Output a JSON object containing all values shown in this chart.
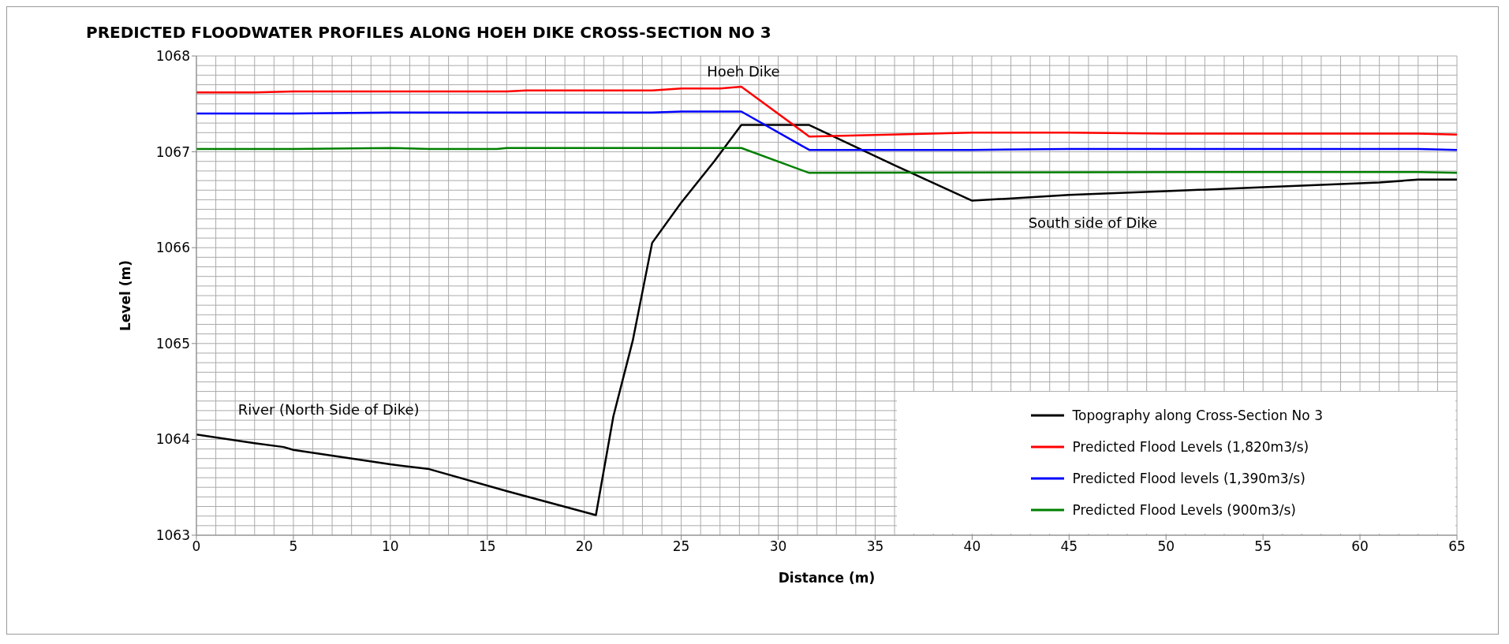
{
  "chart_data": {
    "type": "line",
    "title": "PREDICTED FLOODWATER PROFILES ALONG HOEH DIKE CROSS-SECTION NO 3",
    "xlabel": "Distance (m)",
    "ylabel": "Level (m)",
    "xlim": [
      0,
      65
    ],
    "xticks": [
      0,
      5,
      10,
      15,
      20,
      25,
      30,
      35,
      40,
      45,
      50,
      55,
      60,
      65
    ],
    "ylim": [
      1063,
      1068
    ],
    "yticks": [
      1063,
      1064,
      1065,
      1066,
      1067,
      1068
    ],
    "grid": true,
    "legend": "bottom right",
    "marker": "none",
    "line_style": "solid",
    "annotations": [
      "Hoeh Dike",
      "South side of Dike",
      "River (North Side of Dike)"
    ],
    "series": [
      {
        "name": "Topography along Cross-Section No 3",
        "color": "#000000",
        "x": [
          0,
          3,
          4.5,
          5,
          10,
          12,
          16,
          20.6,
          21.5,
          22.5,
          23.5,
          25,
          26.7,
          28.1,
          31.6,
          36,
          40,
          45,
          50,
          55,
          61,
          63,
          65
        ],
        "values": [
          1064.05,
          1063.96,
          1063.92,
          1063.89,
          1063.74,
          1063.69,
          1063.46,
          1063.21,
          1064.24,
          1065.03,
          1066.05,
          1066.47,
          1066.9,
          1067.28,
          1067.28,
          1066.86,
          1066.49,
          1066.55,
          1066.59,
          1066.63,
          1066.68,
          1066.71,
          1066.71
        ]
      },
      {
        "name": "Predicted Flood Levels (1,820m3/s)",
        "color": "#ff0000",
        "x": [
          0,
          3,
          5,
          16,
          17,
          23.5,
          25,
          27,
          28.1,
          31.6,
          40,
          45,
          50,
          63,
          65
        ],
        "values": [
          1067.62,
          1067.62,
          1067.63,
          1067.63,
          1067.64,
          1067.64,
          1067.66,
          1067.66,
          1067.68,
          1067.16,
          1067.2,
          1067.2,
          1067.19,
          1067.19,
          1067.18
        ]
      },
      {
        "name": "Predicted Flood levels (1,390m3/s)",
        "color": "#0000ff",
        "x": [
          0,
          5,
          10,
          23.5,
          25,
          28.1,
          31.6,
          40,
          45,
          63,
          65
        ],
        "values": [
          1067.4,
          1067.4,
          1067.41,
          1067.41,
          1067.42,
          1067.42,
          1067.02,
          1067.02,
          1067.03,
          1067.03,
          1067.02
        ]
      },
      {
        "name": "Predicted Flood Levels (900m3/s)",
        "color": "#008000",
        "x": [
          0,
          5,
          10,
          12,
          15.5,
          16,
          28.1,
          31.6,
          55,
          63,
          65
        ],
        "values": [
          1067.03,
          1067.03,
          1067.04,
          1067.03,
          1067.03,
          1067.04,
          1067.04,
          1066.78,
          1066.79,
          1066.79,
          1066.78
        ]
      }
    ]
  }
}
